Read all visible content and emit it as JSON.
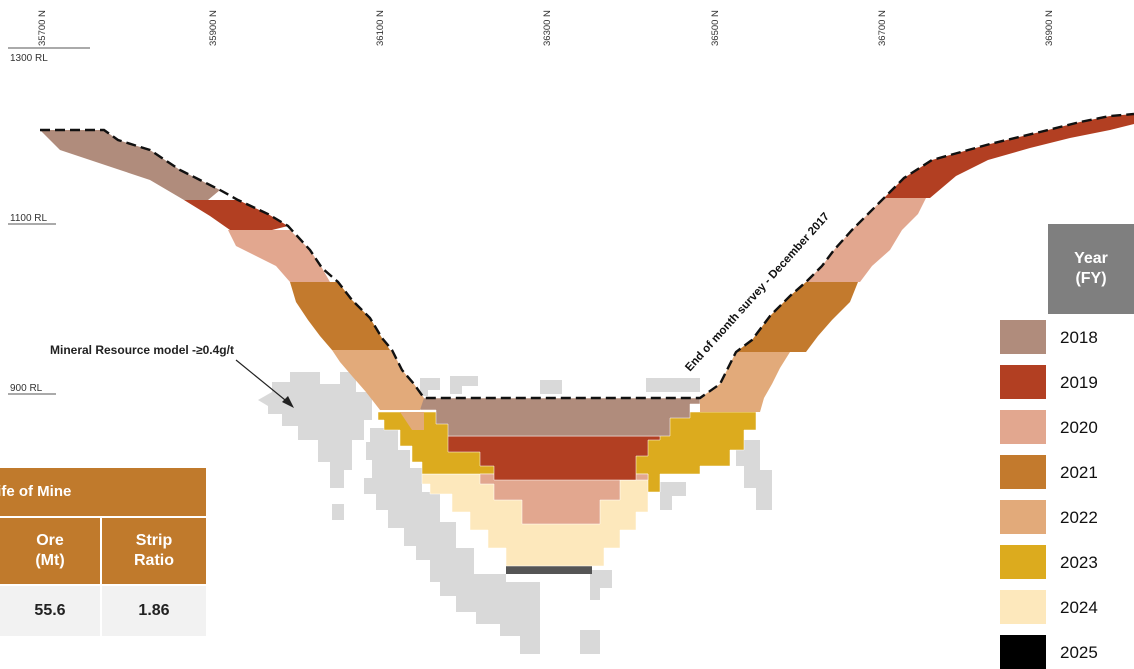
{
  "northings": [
    "35700 N",
    "35900 N",
    "36100 N",
    "36300 N",
    "36500 N",
    "36700 N",
    "36900 N"
  ],
  "reduced_levels": [
    "1300 RL",
    "1100 RL",
    "900 RL"
  ],
  "annotations": {
    "resource_model": "Mineral Resource model -≥0.4g/t",
    "survey_line": "End of month survey - December 2017"
  },
  "legend": {
    "title_line1": "Year",
    "title_line2": "(FY)",
    "items": [
      {
        "label": "2018",
        "color": "#b08c7c"
      },
      {
        "label": "2019",
        "color": "#b23f22"
      },
      {
        "label": "2020",
        "color": "#e2a78f"
      },
      {
        "label": "2021",
        "color": "#c37a2d"
      },
      {
        "label": "2022",
        "color": "#e2aa7a"
      },
      {
        "label": "2023",
        "color": "#dcab1e"
      },
      {
        "label": "2024",
        "color": "#fde8bc"
      },
      {
        "label": "2025",
        "color": "#000000"
      }
    ]
  },
  "life_of_mine": {
    "title": "Life of Mine",
    "columns": [
      {
        "header_line1": "Ore",
        "header_line2": "(Mt)",
        "value": "55.6"
      },
      {
        "header_line1": "Strip",
        "header_line2": "Ratio",
        "value": "1.86"
      }
    ]
  },
  "colors": {
    "resource_grey": "#d9d9d9",
    "pit_floor": "#555555",
    "table_orange": "#c07a2c"
  }
}
